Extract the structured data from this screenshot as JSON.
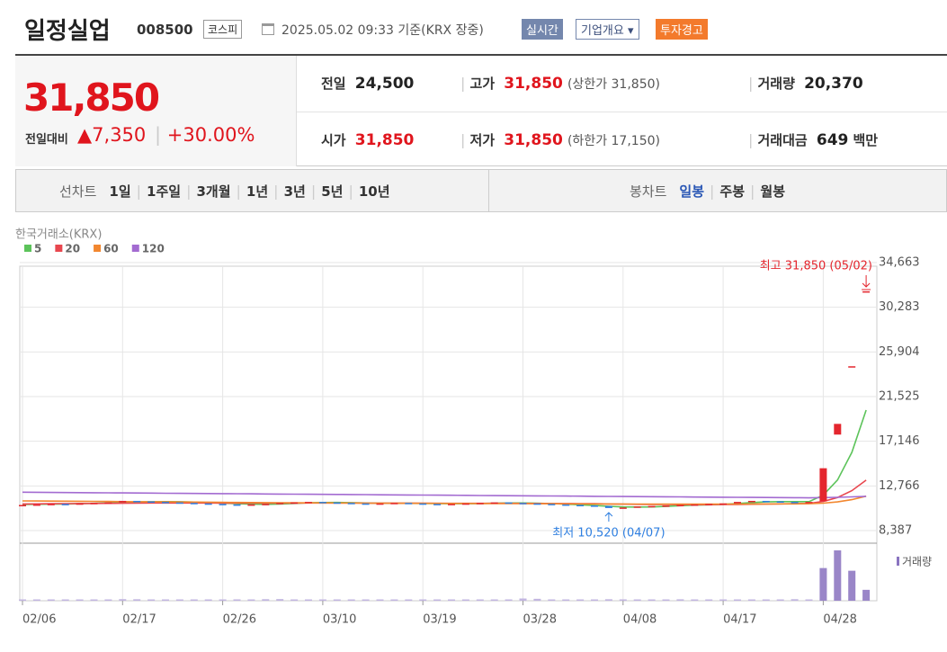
{
  "header": {
    "name": "일정실업",
    "code": "008500",
    "market": "코스피",
    "datetime": "2025.05.02 09:33",
    "basis": "기준(KRX 장중)",
    "realtime": "실시간",
    "company": "기업개요",
    "warning": "투자경고"
  },
  "quote": {
    "price": "31,850",
    "change_label": "전일대비",
    "change": "7,350",
    "change_pct": "+30.00%"
  },
  "stats": {
    "rows": [
      [
        {
          "label": "전일",
          "value": "24,500"
        },
        {
          "label": "고가",
          "value": "31,850",
          "note": "(상한가 31,850)"
        },
        {
          "label": "거래량",
          "value": "20,370"
        }
      ],
      [
        {
          "label": "시가",
          "value": "31,850"
        },
        {
          "label": "저가",
          "value": "31,850",
          "note": "(하한가 17,150)"
        },
        {
          "label": "거래대금",
          "value": "649",
          "unit": "백만"
        }
      ]
    ]
  },
  "tabs": {
    "line_label": "선차트",
    "line": [
      "1일",
      "1주일",
      "3개월",
      "1년",
      "3년",
      "5년",
      "10년"
    ],
    "candle_label": "봉차트",
    "candle": [
      "일봉",
      "주봉",
      "월봉"
    ],
    "active_candle": 0
  },
  "chart_data": {
    "type": "candlestick",
    "source": "한국거래소(KRX)",
    "categories": [
      "02/06",
      null,
      null,
      null,
      null,
      null,
      null,
      "02/17",
      null,
      null,
      null,
      null,
      null,
      null,
      "02/26",
      null,
      null,
      null,
      null,
      null,
      null,
      "03/10",
      null,
      null,
      null,
      null,
      null,
      null,
      "03/19",
      null,
      null,
      null,
      null,
      null,
      null,
      "03/28",
      null,
      null,
      null,
      null,
      null,
      null,
      "04/08",
      null,
      null,
      null,
      null,
      null,
      null,
      "04/17",
      null,
      null,
      null,
      null,
      null,
      null,
      "04/28",
      null,
      null,
      null
    ],
    "open": [
      10850,
      10900,
      10950,
      11000,
      10980,
      11050,
      11100,
      11150,
      11300,
      11250,
      11200,
      11150,
      11100,
      11050,
      11000,
      10950,
      10900,
      10950,
      11000,
      11100,
      11150,
      11200,
      11150,
      11100,
      11050,
      11000,
      11050,
      11100,
      11050,
      11000,
      10950,
      11000,
      11050,
      11100,
      11150,
      11100,
      11050,
      11000,
      10950,
      10900,
      10850,
      10800,
      10600,
      10650,
      10750,
      10800,
      10850,
      10900,
      10950,
      11000,
      11050,
      11200,
      11300,
      11250,
      11200,
      11150,
      11250,
      17800,
      24500,
      31850
    ],
    "close": [
      10900,
      10950,
      11000,
      10980,
      11050,
      11100,
      11150,
      11300,
      11250,
      11200,
      11150,
      11100,
      11050,
      11000,
      10950,
      10900,
      10950,
      11000,
      11100,
      11150,
      11200,
      11150,
      11100,
      11050,
      11000,
      11050,
      11100,
      11050,
      11000,
      10950,
      11000,
      11050,
      11100,
      11150,
      11100,
      11050,
      11000,
      10950,
      10900,
      10850,
      10800,
      10600,
      10650,
      10750,
      10800,
      10850,
      10900,
      10950,
      11000,
      11050,
      11200,
      11300,
      11250,
      11200,
      11150,
      11200,
      14500,
      18850,
      24500,
      31850
    ],
    "volume": [
      2000,
      1800,
      1500,
      2200,
      1900,
      1600,
      2500,
      3000,
      2800,
      2100,
      1700,
      1600,
      2400,
      1900,
      1500,
      2600,
      2200,
      2900,
      3100,
      2400,
      1800,
      1600,
      1500,
      1700,
      2100,
      1900,
      1600,
      1500,
      1800,
      1700,
      1600,
      2000,
      2200,
      1800,
      1700,
      4200,
      3600,
      2400,
      2100,
      1900,
      2300,
      2800,
      2600,
      1800,
      1600,
      2000,
      2700,
      2300,
      1900,
      1800,
      2200,
      1700,
      1600,
      1500,
      2900,
      2400,
      61000,
      94000,
      56000,
      20370
    ],
    "series": [
      {
        "name": "5",
        "color": "#5cc35a",
        "values": [
          10950,
          10960,
          10980,
          10990,
          11020,
          11060,
          11100,
          11160,
          11200,
          11220,
          11230,
          11220,
          11180,
          11130,
          11080,
          11020,
          10980,
          10960,
          10990,
          11050,
          11110,
          11140,
          11150,
          11130,
          11090,
          11070,
          11060,
          11060,
          11050,
          11030,
          11020,
          11020,
          11040,
          11070,
          11090,
          11090,
          11070,
          11030,
          10980,
          10920,
          10850,
          10770,
          10710,
          10700,
          10710,
          10760,
          10830,
          10880,
          10920,
          10960,
          11040,
          11140,
          11200,
          11230,
          11230,
          11230,
          11860,
          13350,
          16060,
          20200
        ]
      },
      {
        "name": "20",
        "color": "#e8474f",
        "values": [
          11000,
          11010,
          11020,
          11030,
          11040,
          11050,
          11060,
          11070,
          11080,
          11090,
          11090,
          11090,
          11090,
          11090,
          11080,
          11080,
          11080,
          11080,
          11080,
          11080,
          11090,
          11090,
          11090,
          11090,
          11080,
          11080,
          11080,
          11070,
          11070,
          11060,
          11060,
          11060,
          11060,
          11060,
          11060,
          11050,
          11050,
          11040,
          11040,
          11030,
          11020,
          11000,
          10980,
          10960,
          10950,
          10940,
          10930,
          10930,
          10930,
          10940,
          10950,
          10970,
          10990,
          11010,
          11030,
          11050,
          11240,
          11630,
          12300,
          13330
        ]
      },
      {
        "name": "60",
        "color": "#f2872f",
        "values": [
          11300,
          11290,
          11280,
          11270,
          11260,
          11250,
          11240,
          11230,
          11220,
          11210,
          11200,
          11190,
          11180,
          11170,
          11160,
          11150,
          11140,
          11130,
          11120,
          11110,
          11100,
          11100,
          11090,
          11090,
          11080,
          11080,
          11070,
          11070,
          11060,
          11060,
          11050,
          11050,
          11040,
          11040,
          11030,
          11030,
          11020,
          11020,
          11010,
          11010,
          11000,
          11000,
          10990,
          10990,
          10980,
          10980,
          10980,
          10980,
          10980,
          10990,
          10990,
          11000,
          11000,
          11010,
          11010,
          11020,
          11080,
          11200,
          11420,
          11760
        ]
      },
      {
        "name": "120",
        "color": "#a36bd1",
        "values": [
          12150,
          12140,
          12130,
          12120,
          12110,
          12100,
          12090,
          12080,
          12070,
          12060,
          12050,
          12040,
          12030,
          12020,
          12010,
          12000,
          11990,
          11980,
          11970,
          11960,
          11950,
          11940,
          11930,
          11920,
          11910,
          11900,
          11890,
          11880,
          11870,
          11860,
          11850,
          11840,
          11830,
          11820,
          11810,
          11800,
          11790,
          11780,
          11770,
          11760,
          11750,
          11740,
          11730,
          11720,
          11710,
          11700,
          11690,
          11680,
          11670,
          11660,
          11650,
          11640,
          11630,
          11620,
          11610,
          11600,
          11620,
          11650,
          11690,
          11750
        ]
      }
    ],
    "ylim": [
      8387,
      34663
    ],
    "yticks": [
      {
        "value": 8387,
        "label": "8,387"
      },
      {
        "value": 12766,
        "label": "12,766"
      },
      {
        "value": 17146,
        "label": "17,146"
      },
      {
        "value": 21525,
        "label": "21,525"
      },
      {
        "value": 25904,
        "label": "25,904"
      },
      {
        "value": 30283,
        "label": "30,283"
      },
      {
        "value": 34663,
        "label": "34,663"
      }
    ],
    "grid": true,
    "high_label": "최고 31,850 (05/02)",
    "low_label": "최저 10,520 (04/07)",
    "volume_label": "거래량"
  }
}
